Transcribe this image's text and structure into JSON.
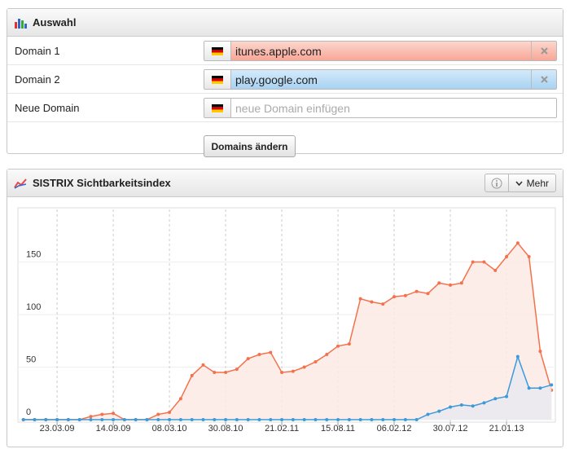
{
  "selection": {
    "title": "Auswahl",
    "rows": [
      {
        "label": "Domain 1",
        "value": "itunes.apple.com"
      },
      {
        "label": "Domain 2",
        "value": "play.google.com"
      },
      {
        "label": "Neue Domain",
        "placeholder": "neue Domain einfügen"
      }
    ],
    "button": "Domains ändern"
  },
  "chart_panel": {
    "menu": "Mehr"
  },
  "chart_data": {
    "type": "line",
    "title": "SISTRIX Sichtbarkeitsindex",
    "x": [
      "08.12.08",
      "12.01.09",
      "16.02.09",
      "23.03.09",
      "27.04.09",
      "01.06.09",
      "06.07.09",
      "10.08.09",
      "14.09.09",
      "19.10.09",
      "23.11.09",
      "28.12.09",
      "01.02.10",
      "08.03.10",
      "12.04.10",
      "17.05.10",
      "21.06.10",
      "26.07.10",
      "30.08.10",
      "04.10.10",
      "08.11.10",
      "13.12.10",
      "17.01.11",
      "21.02.11",
      "28.03.11",
      "02.05.11",
      "06.06.11",
      "11.07.11",
      "15.08.11",
      "19.09.11",
      "24.10.11",
      "28.11.11",
      "02.01.12",
      "06.02.12",
      "12.03.12",
      "16.04.12",
      "21.05.12",
      "25.06.12",
      "30.07.12",
      "03.09.12",
      "08.10.12",
      "12.11.12",
      "17.12.12",
      "21.01.13",
      "25.02.13",
      "01.04.13",
      "06.05.13",
      "10.06.13"
    ],
    "series": [
      {
        "color": "#f4714c",
        "fill": "#fdeae5",
        "values": [
          0,
          0,
          0,
          0,
          0,
          0,
          3,
          5,
          6,
          0,
          0,
          0,
          5,
          7,
          20,
          42,
          52,
          45,
          45,
          48,
          58,
          62,
          64,
          45,
          46,
          50,
          55,
          62,
          70,
          72,
          115,
          112,
          110,
          117,
          118,
          122,
          120,
          130,
          128,
          130,
          150,
          150,
          142,
          155,
          168,
          155,
          65,
          28
        ]
      },
      {
        "color": "#3b9ad9",
        "fill": "#e9e9ef",
        "values": [
          0,
          0,
          0,
          0,
          0,
          0,
          0,
          0,
          0,
          0,
          0,
          0,
          0,
          0,
          0,
          0,
          0,
          0,
          0,
          0,
          0,
          0,
          0,
          0,
          0,
          0,
          0,
          0,
          0,
          0,
          0,
          0,
          0,
          0,
          0,
          0,
          5,
          8,
          12,
          14,
          13,
          16,
          20,
          22,
          60,
          30,
          30,
          33
        ]
      }
    ],
    "xlim": [
      "21.11.08",
      "17.06.13"
    ],
    "xticks": [
      "23.03.09",
      "14.09.09",
      "08.03.10",
      "30.08.10",
      "21.02.11",
      "15.08.11",
      "06.02.12",
      "30.07.12",
      "21.01.13"
    ],
    "ylim": [
      0,
      200
    ],
    "yticks": [
      0,
      50,
      100,
      150
    ],
    "grid": true
  }
}
